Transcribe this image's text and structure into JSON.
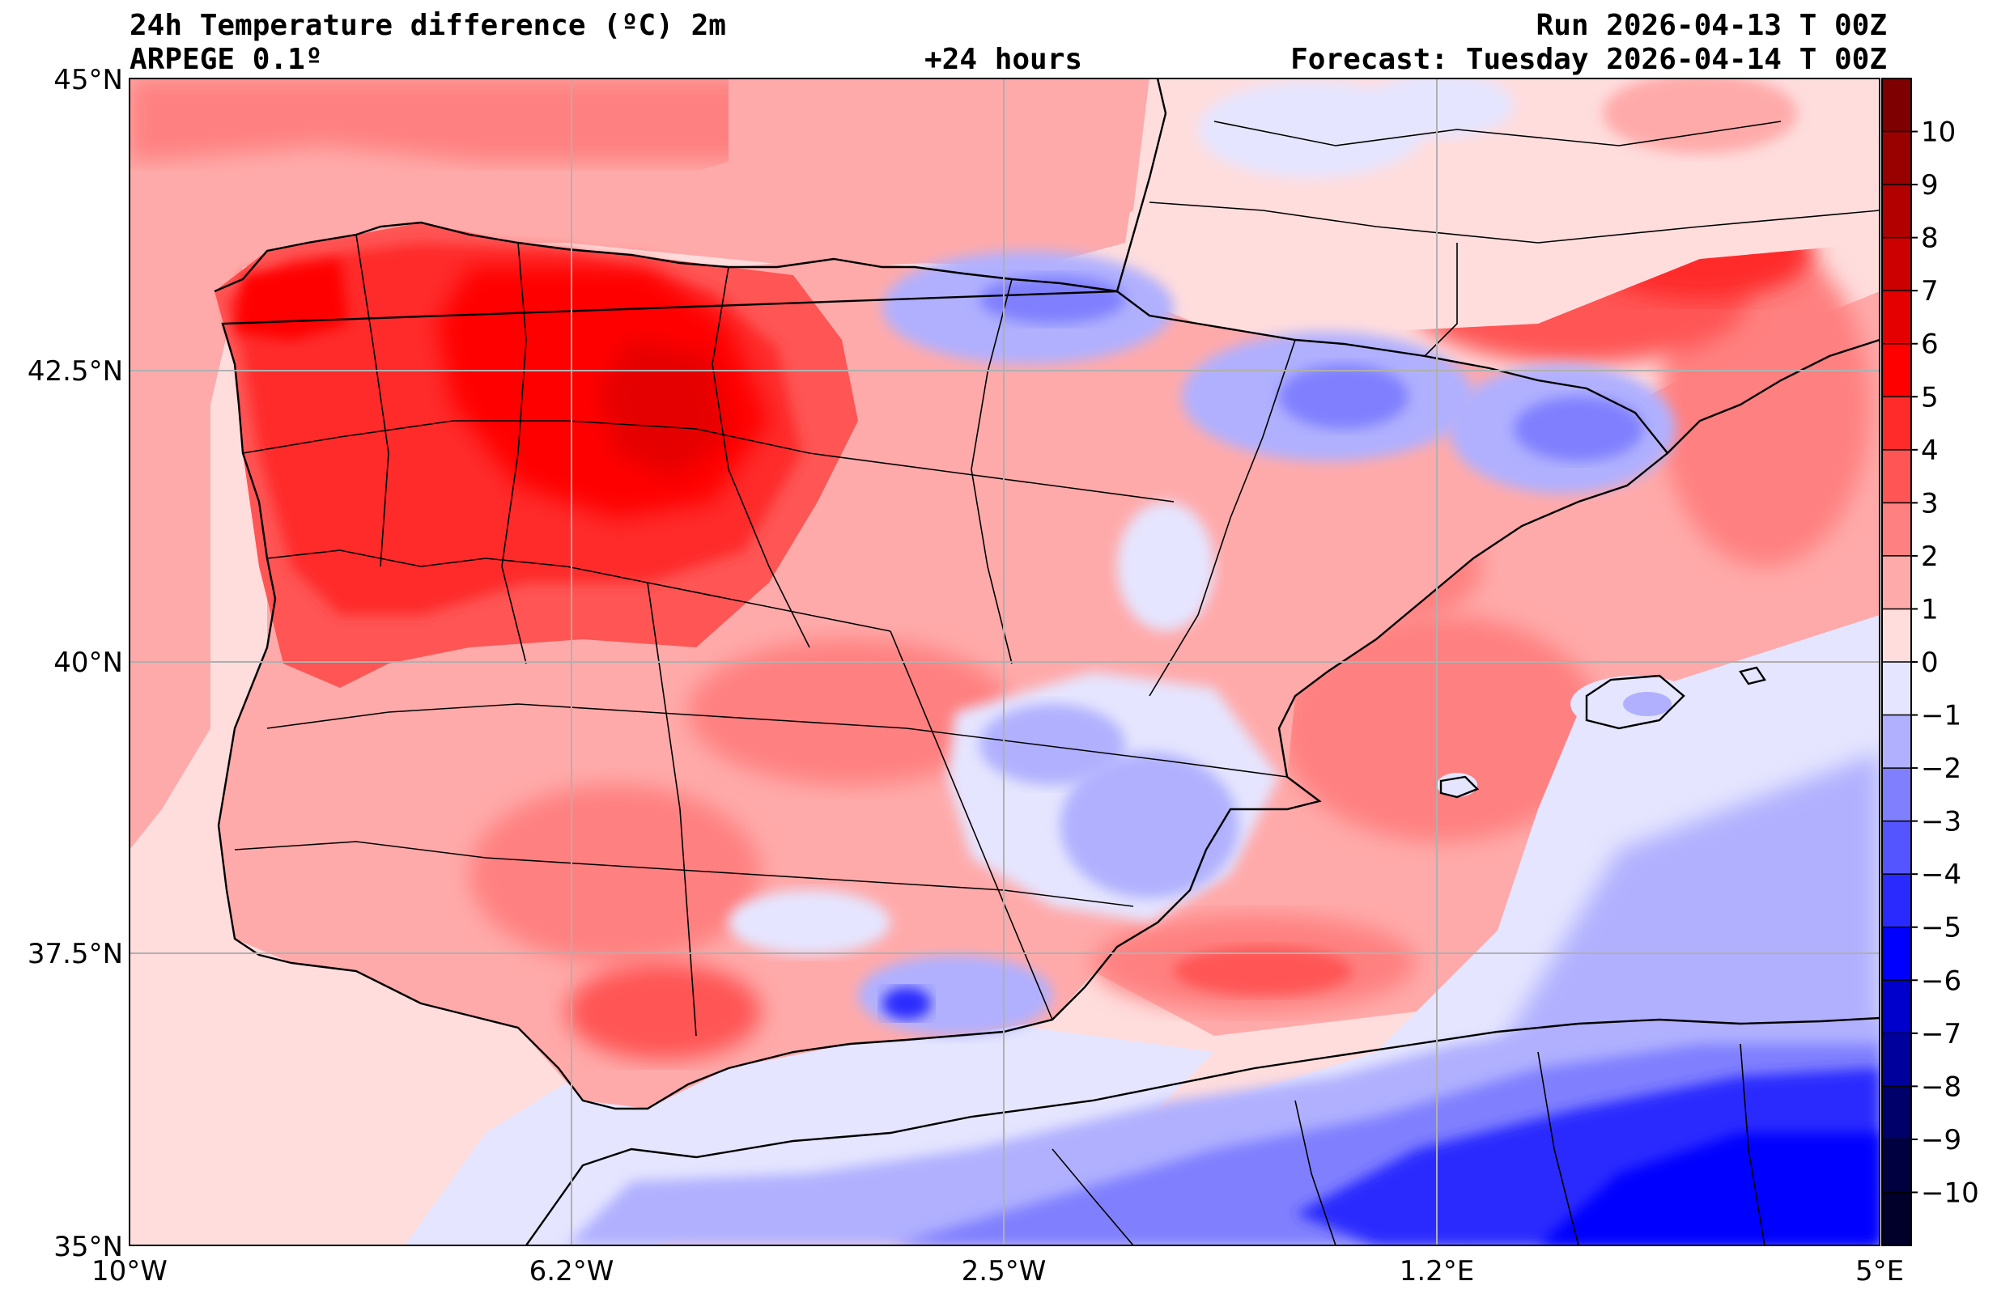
{
  "header": {
    "title": "24h Temperature difference (ºC) 2m",
    "model": "ARPEGE 0.1º",
    "lead": "+24 hours",
    "run": "Run 2026-04-13 T 00Z",
    "forecast": "Forecast: Tuesday 2026-04-14 T 00Z"
  },
  "map": {
    "lon_ticks": [
      "10°W",
      "6.2°W",
      "2.5°W",
      "1.2°E",
      "5°E"
    ],
    "lat_ticks": [
      "45°N",
      "42.5°N",
      "40°N",
      "37.5°N",
      "35°N"
    ],
    "extent": {
      "lon_min": -10,
      "lon_max": 5,
      "lat_min": 35,
      "lat_max": 45
    },
    "grid": true
  },
  "colorbar": {
    "ticks": [
      "10",
      "9",
      "8",
      "7",
      "6",
      "5",
      "4",
      "3",
      "2",
      "1",
      "0",
      "−1",
      "−2",
      "−3",
      "−4",
      "−5",
      "−6",
      "−7",
      "−8",
      "−9",
      "−10"
    ],
    "colors": [
      "#7f0000",
      "#990000",
      "#b20000",
      "#cc0000",
      "#e50000",
      "#ff0000",
      "#ff2a2a",
      "#ff5555",
      "#ff8080",
      "#ffaaaa",
      "#ffdddd",
      "#e5e5ff",
      "#b0b0ff",
      "#8080ff",
      "#5555ff",
      "#2a2aff",
      "#0000ff",
      "#0000cc",
      "#00009c",
      "#00006a",
      "#000040",
      "#00002a"
    ]
  },
  "colors": {
    "sea_warm": "#ffaaaa",
    "land_hot": "#ff2a2a",
    "land_very_hot": "#e50000",
    "land_warm": "#ff8080",
    "land_mild": "#ffdddd",
    "cool": "#e5e5ff",
    "cold": "#8080ff",
    "very_cold": "#0000ff"
  }
}
